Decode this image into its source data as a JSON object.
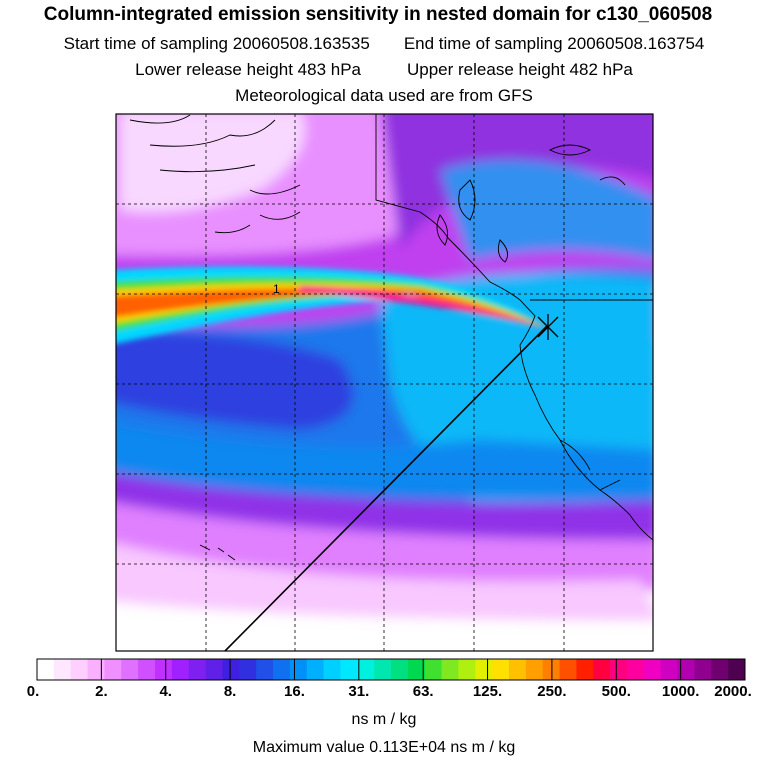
{
  "header": {
    "title": "Column-integrated emission sensitivity in nested domain for c130_060508",
    "start_label": "Start time of sampling 20060508.163535",
    "end_label": "End time of sampling 20060508.163754",
    "lower_label": "Lower release height  483 hPa",
    "upper_label": "Upper release height  482 hPa",
    "met_label": "Meteorological data used are from GFS"
  },
  "map": {
    "contour_label": "1",
    "release_marker": "release-point-star"
  },
  "colorbar": {
    "ticks": [
      "0.",
      "2.",
      "4.",
      "8.",
      "16.",
      "31.",
      "63.",
      "125.",
      "250.",
      "500.",
      "1000.",
      "2000."
    ],
    "colors": [
      "#ffffff",
      "#ffe8ff",
      "#ffd0ff",
      "#f8b0ff",
      "#f090ff",
      "#e070ff",
      "#d050ff",
      "#c030ff",
      "#a020ff",
      "#8020f0",
      "#6020e8",
      "#4020e0",
      "#3030e0",
      "#2050e8",
      "#1070f0",
      "#0090f8",
      "#00b0ff",
      "#00d0ff",
      "#00e8ff",
      "#00f0e0",
      "#00e8b0",
      "#00e080",
      "#00d850",
      "#40e030",
      "#80e820",
      "#b0f010",
      "#e0f000",
      "#ffe000",
      "#ffc000",
      "#ffa000",
      "#ff8000",
      "#ff5000",
      "#ff2000",
      "#ff0040",
      "#ff0080",
      "#ff00a0",
      "#f000c0",
      "#d000c0",
      "#b000b0",
      "#900090",
      "#700070",
      "#500050"
    ],
    "units": "ns m / kg"
  },
  "footer": {
    "max_value": "Maximum value  0.113E+04 ns m / kg"
  }
}
